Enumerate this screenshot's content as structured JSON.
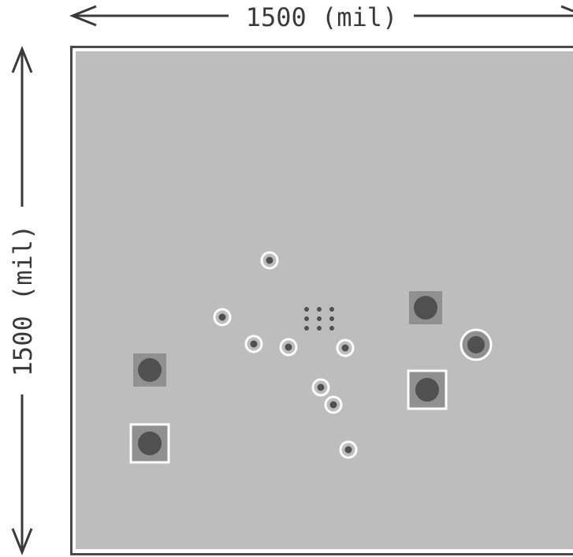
{
  "dimensions": {
    "width_label": "1500 (mil)",
    "height_label": "1500 (mil)"
  },
  "colors": {
    "background": "#ffffff",
    "board_fill": "#bdbdbd",
    "board_outline": "#4a4a4a",
    "pad_fill": "#909090",
    "hole_fill": "#505050",
    "ring_stroke": "#ffffff",
    "dimension_line": "#3a3a3a"
  }
}
